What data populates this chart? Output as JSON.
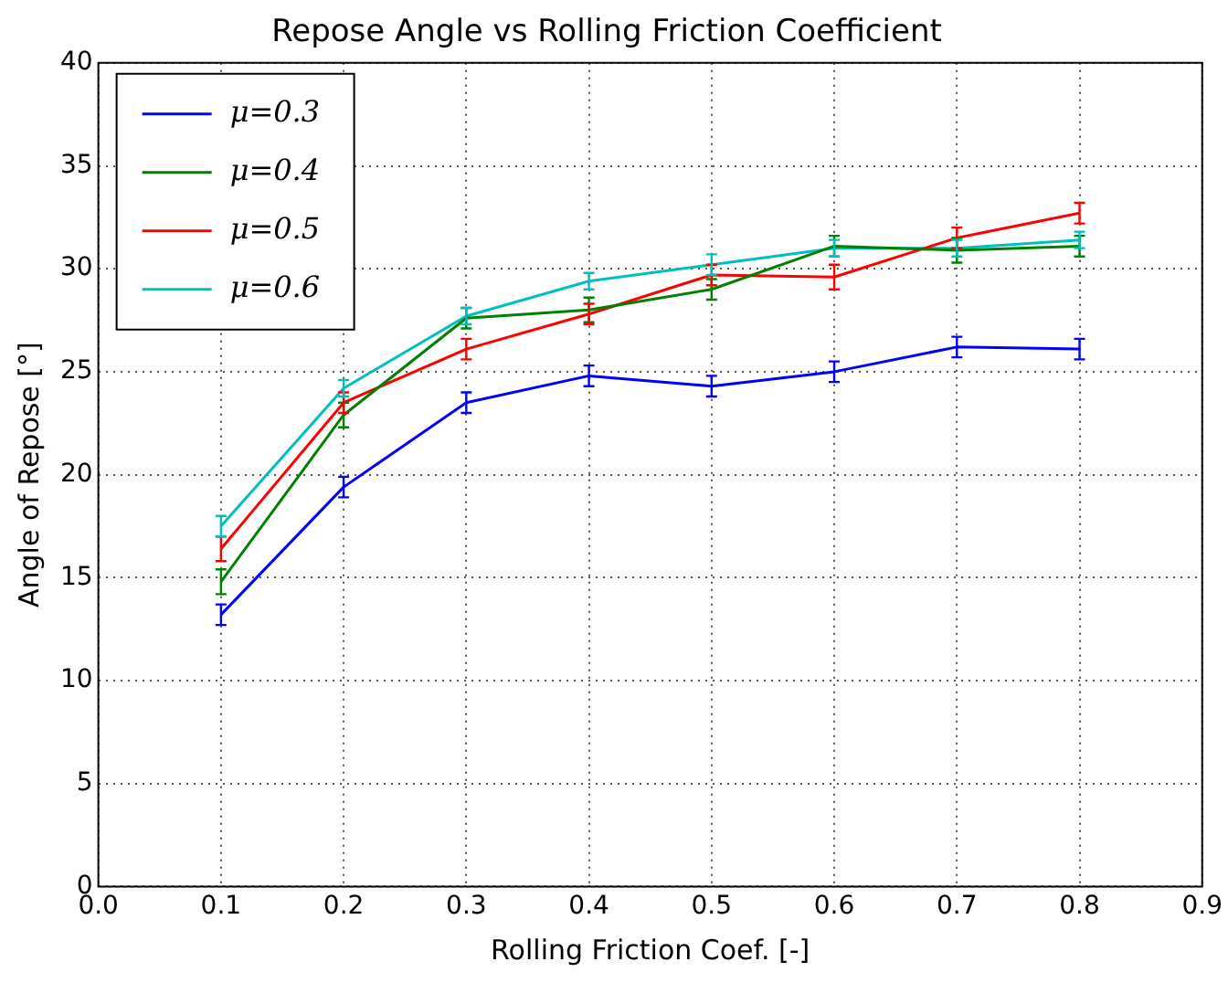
{
  "chart_data": {
    "type": "line",
    "title": "Repose Angle vs Rolling Friction Coefficient",
    "xlabel": "Rolling Friction Coef. [-]",
    "ylabel": "Angle of Repose [°]",
    "x": [
      0.1,
      0.2,
      0.3,
      0.4,
      0.5,
      0.6,
      0.7,
      0.8
    ],
    "xlim": [
      0,
      0.9
    ],
    "xticks": [
      {
        "value": 0,
        "label": "0.0"
      },
      {
        "value": 0.1,
        "label": "0.1"
      },
      {
        "value": 0.2,
        "label": "0.2"
      },
      {
        "value": 0.3,
        "label": "0.3"
      },
      {
        "value": 0.4,
        "label": "0.4"
      },
      {
        "value": 0.5,
        "label": "0.5"
      },
      {
        "value": 0.6,
        "label": "0.6"
      },
      {
        "value": 0.7,
        "label": "0.7"
      },
      {
        "value": 0.8,
        "label": "0.8"
      },
      {
        "value": 0.9,
        "label": "0.9"
      }
    ],
    "ylim": [
      0,
      40
    ],
    "yticks": [
      0,
      5,
      10,
      15,
      20,
      25,
      30,
      35,
      40
    ],
    "grid": true,
    "legend": "top left",
    "line_style": "solid",
    "series": [
      {
        "name": "μ=0.3",
        "color": "#0000ff",
        "values": [
          13.2,
          19.4,
          23.5,
          24.8,
          24.3,
          25.0,
          26.2,
          26.1
        ],
        "errors": [
          0.5,
          0.5,
          0.5,
          0.5,
          0.5,
          0.5,
          0.5,
          0.5
        ]
      },
      {
        "name": "μ=0.4",
        "color": "#008000",
        "values": [
          14.8,
          22.9,
          27.6,
          28.0,
          29.0,
          31.1,
          30.9,
          31.1
        ],
        "errors": [
          0.6,
          0.6,
          0.5,
          0.6,
          0.5,
          0.5,
          0.6,
          0.5
        ]
      },
      {
        "name": "μ=0.5",
        "color": "#ff0000",
        "values": [
          16.4,
          23.5,
          26.1,
          27.8,
          29.7,
          29.6,
          31.5,
          32.7
        ],
        "errors": [
          0.6,
          0.5,
          0.5,
          0.5,
          0.5,
          0.6,
          0.5,
          0.5
        ]
      },
      {
        "name": "μ=0.6",
        "color": "#00bfbf",
        "values": [
          17.5,
          24.2,
          27.7,
          29.4,
          30.2,
          31.0,
          31.0,
          31.4
        ],
        "errors": [
          0.5,
          0.4,
          0.4,
          0.4,
          0.5,
          0.4,
          0.4,
          0.4
        ]
      }
    ]
  }
}
